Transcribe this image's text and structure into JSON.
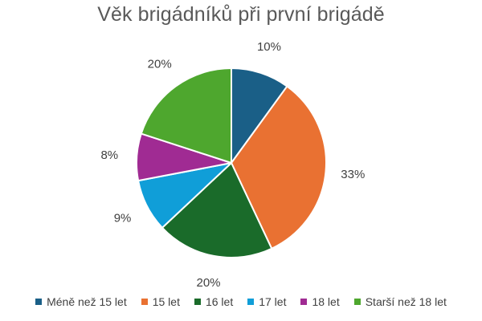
{
  "chart_data": {
    "type": "pie",
    "title": "Věk brigádníků při první brigádě",
    "categories": [
      "Méně než 15 let",
      "15 let",
      "16 let",
      "17 let",
      "18 let",
      "Starší než 18 let"
    ],
    "values": [
      10,
      33,
      20,
      9,
      8,
      20
    ],
    "labels": [
      "10%",
      "33%",
      "20%",
      "9%",
      "8%",
      "20%"
    ],
    "colors": [
      "#1a5f87",
      "#e97132",
      "#1a6b2a",
      "#109ed8",
      "#a02b93",
      "#4ea72e"
    ],
    "legend_position": "bottom",
    "start_angle": "12 o'clock",
    "direction": "clockwise"
  }
}
